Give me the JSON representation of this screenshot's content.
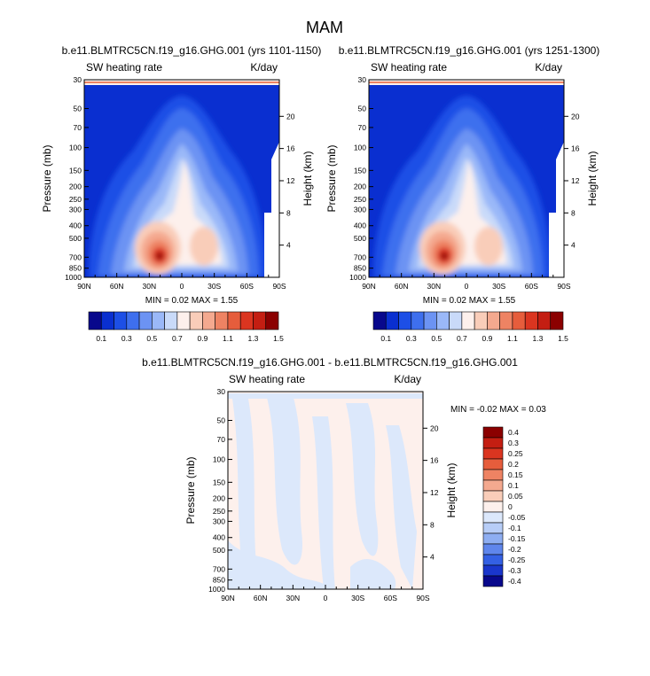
{
  "page": {
    "title": "MAM"
  },
  "chart_data": [
    {
      "type": "contour",
      "title": "b.e11.BLMTRC5CN.f19_g16.GHG.001 (yrs 1101-1150)",
      "left_label": "SW heating rate",
      "right_label": "K/day",
      "ylabel": "Pressure (mb)",
      "y2label": "Height (km)",
      "x_ticks": [
        "90N",
        "60N",
        "30N",
        "0",
        "30S",
        "60S",
        "90S"
      ],
      "y_ticks": [
        "30",
        "50",
        "70",
        "100",
        "150",
        "200",
        "250",
        "300",
        "400",
        "500",
        "700",
        "850",
        "1000"
      ],
      "y2_ticks": [
        "20",
        "16",
        "12",
        "8",
        "4"
      ],
      "stats": "MIN =  0.02   MAX =   1.55",
      "colorbar_labels": [
        "0.1",
        "0.3",
        "0.5",
        "0.7",
        "0.9",
        "1.1",
        "1.3",
        "1.5"
      ],
      "colorbar_colors": [
        "#08088c",
        "#0a2fd0",
        "#1d4fe6",
        "#3e6fee",
        "#6c93f3",
        "#9ab8f8",
        "#c9daf9",
        "#fdf0ec",
        "#f9cdb9",
        "#f4a98f",
        "#ee8363",
        "#e65d3c",
        "#db3520",
        "#c41e12",
        "#8b0000"
      ],
      "pressure_range_mb": [
        1000,
        30
      ],
      "latitude_range": [
        90,
        -90
      ]
    },
    {
      "type": "contour",
      "title": "b.e11.BLMTRC5CN.f19_g16.GHG.001 (yrs 1251-1300)",
      "left_label": "SW heating rate",
      "right_label": "K/day",
      "ylabel": "Pressure (mb)",
      "y2label": "Height (km)",
      "x_ticks": [
        "90N",
        "60N",
        "30N",
        "0",
        "30S",
        "60S",
        "90S"
      ],
      "y_ticks": [
        "30",
        "50",
        "70",
        "100",
        "150",
        "200",
        "250",
        "300",
        "400",
        "500",
        "700",
        "850",
        "1000"
      ],
      "y2_ticks": [
        "20",
        "16",
        "12",
        "8",
        "4"
      ],
      "stats": "MIN =  0.02   MAX =   1.55",
      "colorbar_labels": [
        "0.1",
        "0.3",
        "0.5",
        "0.7",
        "0.9",
        "1.1",
        "1.3",
        "1.5"
      ],
      "colorbar_colors": [
        "#08088c",
        "#0a2fd0",
        "#1d4fe6",
        "#3e6fee",
        "#6c93f3",
        "#9ab8f8",
        "#c9daf9",
        "#fdf0ec",
        "#f9cdb9",
        "#f4a98f",
        "#ee8363",
        "#e65d3c",
        "#db3520",
        "#c41e12",
        "#8b0000"
      ],
      "pressure_range_mb": [
        1000,
        30
      ],
      "latitude_range": [
        90,
        -90
      ]
    },
    {
      "type": "contour",
      "title": "b.e11.BLMTRC5CN.f19_g16.GHG.001 - b.e11.BLMTRC5CN.f19_g16.GHG.001",
      "left_label": "SW heating rate",
      "right_label": "K/day",
      "ylabel": "Pressure (mb)",
      "y2label": "Height (km)",
      "x_ticks": [
        "90N",
        "60N",
        "30N",
        "0",
        "30S",
        "60S",
        "90S"
      ],
      "y_ticks": [
        "30",
        "50",
        "70",
        "100",
        "150",
        "200",
        "250",
        "300",
        "400",
        "500",
        "700",
        "850",
        "1000"
      ],
      "y2_ticks": [
        "20",
        "16",
        "12",
        "8",
        "4"
      ],
      "stats": "MIN = -0.02  MAX =  0.03",
      "colorbar_labels": [
        "0.4",
        "0.3",
        "0.25",
        "0.2",
        "0.15",
        "0.1",
        "0.05",
        "0",
        "-0.05",
        "-0.1",
        "-0.15",
        "-0.2",
        "-0.25",
        "-0.3",
        "-0.4"
      ],
      "colorbar_colors": [
        "#8b0000",
        "#c41e12",
        "#db3520",
        "#e65d3c",
        "#ee8363",
        "#f4a98f",
        "#f9cdb9",
        "#fdf0ec",
        "#dce8fb",
        "#b7cdf7",
        "#8eaef2",
        "#5f86ec",
        "#3460e4",
        "#1a36cc",
        "#08088c"
      ],
      "pressure_range_mb": [
        1000,
        30
      ],
      "latitude_range": [
        90,
        -90
      ]
    }
  ]
}
